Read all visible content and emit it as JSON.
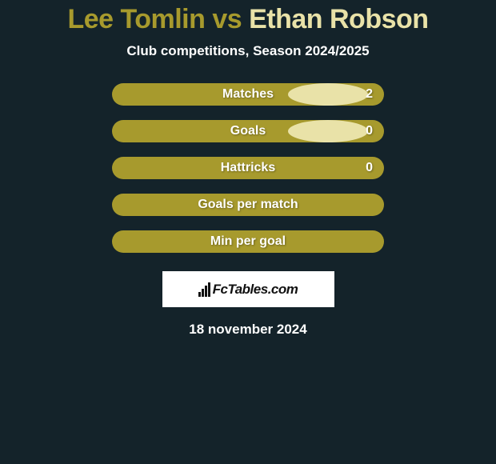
{
  "title": {
    "player1": "Lee Tomlin",
    "vs": " vs ",
    "player2": "Ethan Robson",
    "player1_color": "#a79a2d",
    "player2_color": "#e9e2a8"
  },
  "subtitle": "Club competitions, Season 2024/2025",
  "subtitle_color": "#ffffff",
  "background_color": "#14232a",
  "bar_color": "#a79a2d",
  "label_color": "#ffffff",
  "ellipse_left_color": "#e5e5e5",
  "ellipse_right_color": "#e9e2a8",
  "rows": [
    {
      "label": "Matches",
      "has_value": true,
      "value": "2",
      "show_left_ellipse": true,
      "show_right_ellipse": true
    },
    {
      "label": "Goals",
      "has_value": true,
      "value": "0",
      "show_left_ellipse": true,
      "show_right_ellipse": true
    },
    {
      "label": "Hattricks",
      "has_value": true,
      "value": "0",
      "show_left_ellipse": false,
      "show_right_ellipse": false
    },
    {
      "label": "Goals per match",
      "has_value": false,
      "value": "",
      "show_left_ellipse": false,
      "show_right_ellipse": false
    },
    {
      "label": "Min per goal",
      "has_value": false,
      "value": "",
      "show_left_ellipse": false,
      "show_right_ellipse": false
    }
  ],
  "watermark": "FcTables.com",
  "date": "18 november 2024",
  "date_color": "#ffffff"
}
